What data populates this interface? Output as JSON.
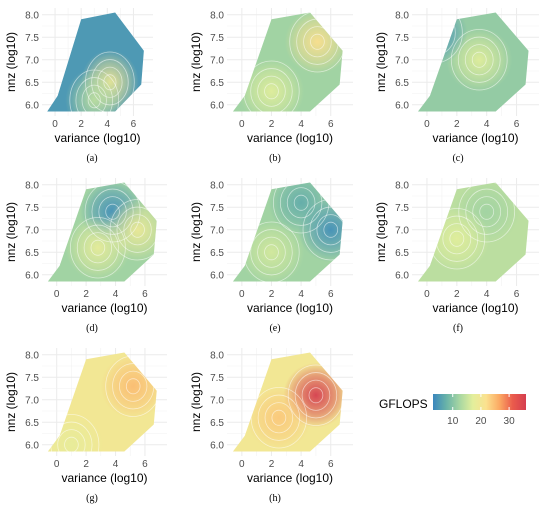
{
  "figure": {
    "legend": {
      "title": "GFLOPS",
      "ticks": [
        10,
        20,
        30
      ],
      "range": [
        3,
        36
      ],
      "colors": [
        "#3a86bd",
        "#69b3a8",
        "#a7d6a2",
        "#e3ef9c",
        "#fbe18f",
        "#fba963",
        "#ea5b4c",
        "#d53e4f"
      ]
    }
  },
  "chart_data": [
    {
      "type": "heatmap",
      "panel": "(a)",
      "xlabel": "variance (log10)",
      "ylabel": "nnz (log10)",
      "xticks": [
        0,
        2,
        4,
        6
      ],
      "yticks": [
        6.0,
        6.5,
        7.0,
        7.5,
        8.0
      ],
      "xlim": [
        -1,
        7.5
      ],
      "ylim": [
        5.75,
        8.15
      ],
      "grid": true,
      "colorscale_range": [
        3,
        36
      ],
      "base_value": 5,
      "hotspots": [
        {
          "x": 4.2,
          "y": 6.5,
          "value": 20
        },
        {
          "x": 3.0,
          "y": 6.1,
          "value": 14
        }
      ]
    },
    {
      "type": "heatmap",
      "panel": "(b)",
      "xlabel": "variance (log10)",
      "ylabel": "nnz (log10)",
      "xticks": [
        0,
        2,
        4,
        6
      ],
      "yticks": [
        6.0,
        6.5,
        7.0,
        7.5,
        8.0
      ],
      "xlim": [
        -1,
        7.5
      ],
      "ylim": [
        5.75,
        8.15
      ],
      "grid": true,
      "colorscale_range": [
        3,
        36
      ],
      "base_value": 12,
      "hotspots": [
        {
          "x": 5.1,
          "y": 7.4,
          "value": 22
        },
        {
          "x": 2.0,
          "y": 6.3,
          "value": 17
        }
      ]
    },
    {
      "type": "heatmap",
      "panel": "(c)",
      "xlabel": "variance (log10)",
      "ylabel": "nnz (log10)",
      "xticks": [
        0,
        2,
        4,
        6
      ],
      "yticks": [
        6.0,
        6.5,
        7.0,
        7.5,
        8.0
      ],
      "xlim": [
        -1,
        7.5
      ],
      "ylim": [
        5.75,
        8.15
      ],
      "grid": true,
      "colorscale_range": [
        3,
        36
      ],
      "base_value": 11,
      "hotspots": [
        {
          "x": 3.5,
          "y": 7.0,
          "value": 17
        },
        {
          "x": 0.5,
          "y": 7.6,
          "value": 4
        }
      ]
    },
    {
      "type": "heatmap",
      "panel": "(d)",
      "xlabel": "variance (log10)",
      "ylabel": "nnz (log10)",
      "xticks": [
        0,
        2,
        4,
        6
      ],
      "yticks": [
        6.0,
        6.5,
        7.0,
        7.5,
        8.0
      ],
      "xlim": [
        -1,
        7.5
      ],
      "ylim": [
        5.75,
        8.15
      ],
      "grid": true,
      "colorscale_range": [
        3,
        36
      ],
      "base_value": 12,
      "hotspots": [
        {
          "x": 3.8,
          "y": 7.4,
          "value": 4
        },
        {
          "x": 2.8,
          "y": 6.6,
          "value": 18
        },
        {
          "x": 5.5,
          "y": 7.0,
          "value": 19
        }
      ]
    },
    {
      "type": "heatmap",
      "panel": "(e)",
      "xlabel": "variance (log10)",
      "ylabel": "nnz (log10)",
      "xticks": [
        0,
        2,
        4,
        6
      ],
      "yticks": [
        6.0,
        6.5,
        7.0,
        7.5,
        8.0
      ],
      "xlim": [
        -1,
        7.5
      ],
      "ylim": [
        5.75,
        8.15
      ],
      "grid": true,
      "colorscale_range": [
        3,
        36
      ],
      "base_value": 12,
      "hotspots": [
        {
          "x": 6.0,
          "y": 7.0,
          "value": 4
        },
        {
          "x": 4.0,
          "y": 7.6,
          "value": 7
        },
        {
          "x": 2.0,
          "y": 6.5,
          "value": 16
        }
      ]
    },
    {
      "type": "heatmap",
      "panel": "(f)",
      "xlabel": "variance (log10)",
      "ylabel": "nnz (log10)",
      "xticks": [
        0,
        2,
        4,
        6
      ],
      "yticks": [
        6.0,
        6.5,
        7.0,
        7.5,
        8.0
      ],
      "xlim": [
        -1,
        7.5
      ],
      "ylim": [
        5.75,
        8.15
      ],
      "grid": true,
      "colorscale_range": [
        3,
        36
      ],
      "base_value": 14,
      "hotspots": [
        {
          "x": 4.0,
          "y": 7.4,
          "value": 12
        },
        {
          "x": 2.0,
          "y": 6.8,
          "value": 17
        }
      ]
    },
    {
      "type": "heatmap",
      "panel": "(g)",
      "xlabel": "variance (log10)",
      "ylabel": "nnz (log10)",
      "xticks": [
        0,
        2,
        4,
        6
      ],
      "yticks": [
        6.0,
        6.5,
        7.0,
        7.5,
        8.0
      ],
      "xlim": [
        -1,
        7.5
      ],
      "ylim": [
        5.75,
        8.15
      ],
      "grid": true,
      "colorscale_range": [
        3,
        36
      ],
      "base_value": 20,
      "hotspots": [
        {
          "x": 5.2,
          "y": 7.3,
          "value": 25
        },
        {
          "x": 1.0,
          "y": 6.0,
          "value": 18
        }
      ]
    },
    {
      "type": "heatmap",
      "panel": "(h)",
      "xlabel": "variance (log10)",
      "ylabel": "nnz (log10)",
      "xticks": [
        0,
        2,
        4,
        6
      ],
      "yticks": [
        6.0,
        6.5,
        7.0,
        7.5,
        8.0
      ],
      "xlim": [
        -1,
        7.5
      ],
      "ylim": [
        5.75,
        8.15
      ],
      "grid": true,
      "colorscale_range": [
        3,
        36
      ],
      "base_value": 20,
      "hotspots": [
        {
          "x": 5.0,
          "y": 7.1,
          "value": 36
        },
        {
          "x": 2.5,
          "y": 6.6,
          "value": 24
        }
      ]
    }
  ]
}
